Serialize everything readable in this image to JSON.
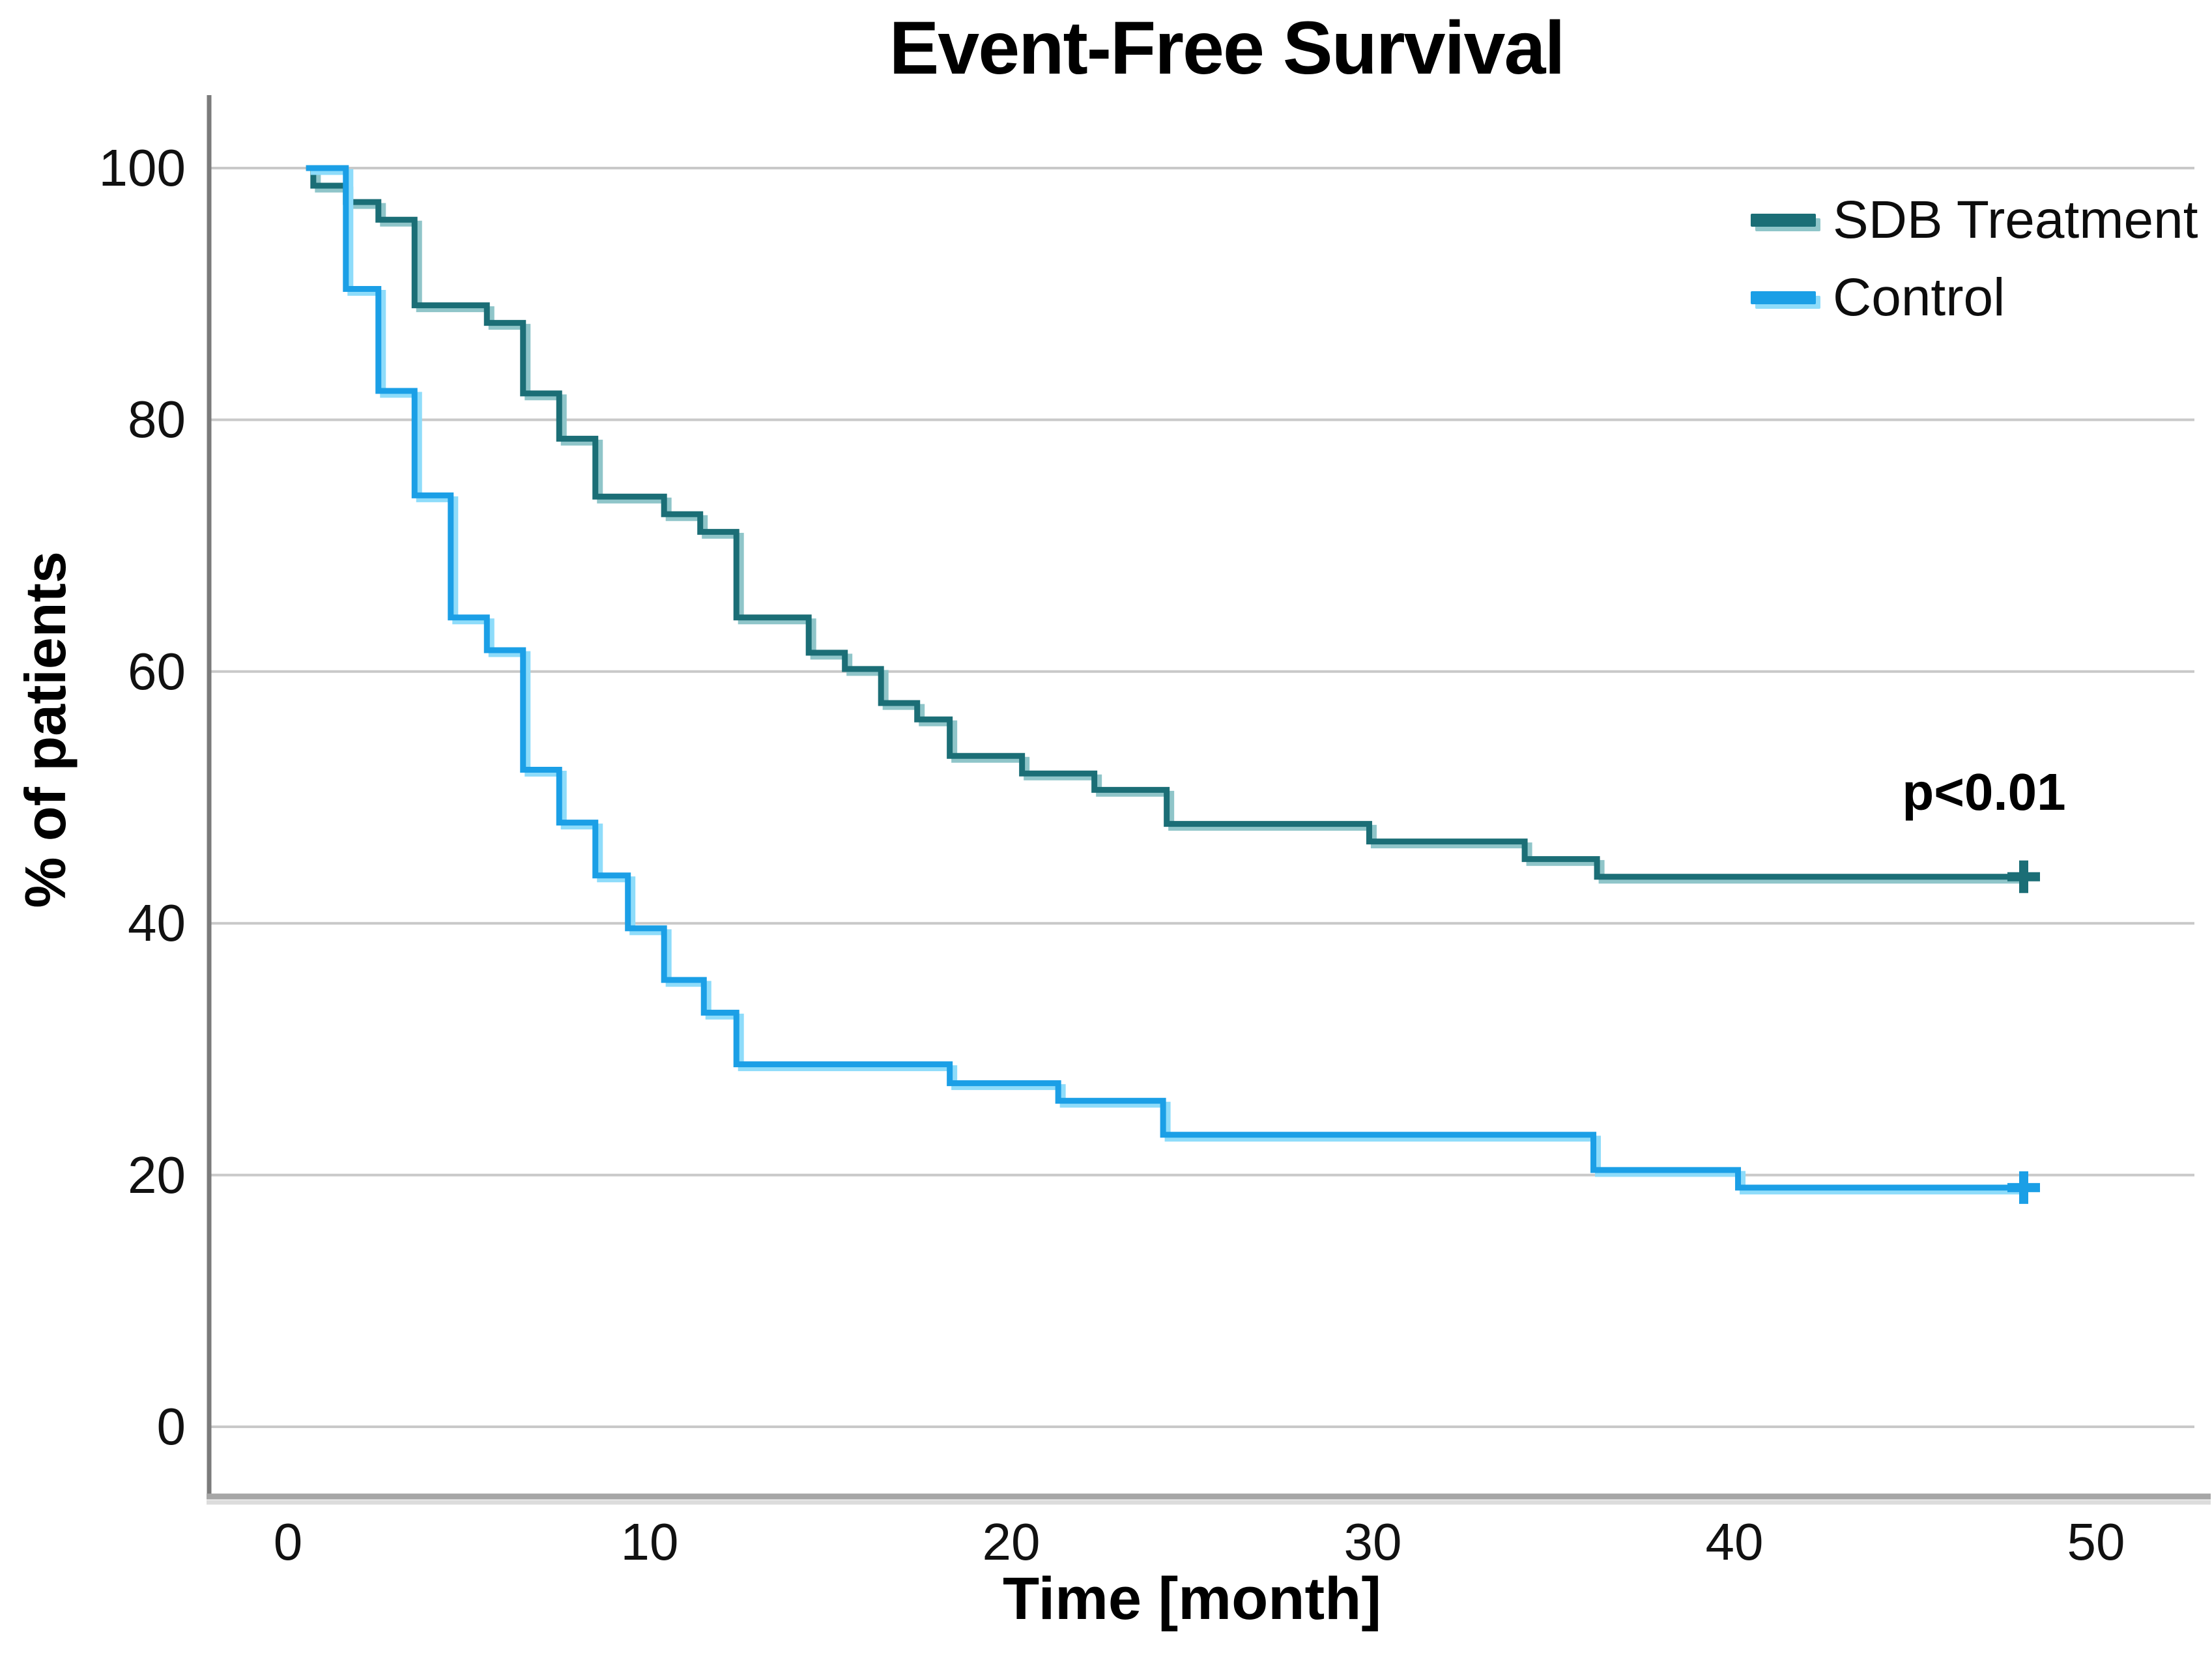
{
  "title": "Event-Free Survival",
  "p_value_annotation": "p<0.01",
  "x_axis": {
    "label": "Time [month]",
    "ticks": [
      0,
      10,
      20,
      30,
      40,
      50
    ]
  },
  "y_axis": {
    "label": "% of patients",
    "ticks": [
      0,
      20,
      40,
      60,
      80,
      100
    ]
  },
  "legend": {
    "position": "upper right",
    "items": [
      {
        "label": "SDB Treatment",
        "color": "#1b6e76",
        "shadow_color": "#8fc5c9"
      },
      {
        "label": "Control",
        "color": "#1b9fe6",
        "shadow_color": "#8edcfa"
      }
    ]
  },
  "colors": {
    "background": "#ffffff",
    "gridline": "#c9c9c9",
    "y_axis_line": "#7b7b7b",
    "x_axis_line": "#a6a6a6",
    "x_axis_line_shadow": "#dcdcdc",
    "text": "#000000"
  },
  "chart_data": {
    "type": "line",
    "subtype": "kaplan-meier-step-curves",
    "title": "Event-Free Survival",
    "xlabel": "Time [month]",
    "ylabel": "% of patients",
    "xlim": [
      0,
      50
    ],
    "ylim": [
      0,
      100
    ],
    "x_ticks": [
      0,
      10,
      20,
      30,
      40,
      50
    ],
    "y_ticks": [
      0,
      20,
      40,
      60,
      80,
      100
    ],
    "grid": "horizontal",
    "legend_position": "upper right",
    "annotations": [
      {
        "text": "p<0.01",
        "x": 46.8,
        "y": 50.3
      }
    ],
    "series": [
      {
        "name": "SDB Treatment",
        "color": "#1b6e76",
        "censored_at_end": true,
        "censor_time": 48,
        "steps_time_percent": [
          [
            0.5,
            100
          ],
          [
            0.7,
            98.6
          ],
          [
            1.6,
            97.3
          ],
          [
            2.5,
            95.9
          ],
          [
            3.5,
            89.1
          ],
          [
            5.5,
            87.7
          ],
          [
            6.5,
            82.1
          ],
          [
            7.5,
            78.5
          ],
          [
            8.5,
            73.9
          ],
          [
            10.4,
            72.5
          ],
          [
            11.4,
            71.1
          ],
          [
            12.4,
            64.3
          ],
          [
            14.4,
            61.5
          ],
          [
            15.4,
            60.2
          ],
          [
            16.4,
            57.5
          ],
          [
            17.4,
            56.2
          ],
          [
            18.3,
            53.3
          ],
          [
            20.3,
            51.9
          ],
          [
            22.3,
            50.6
          ],
          [
            24.3,
            47.9
          ],
          [
            29.9,
            46.5
          ],
          [
            34.2,
            45.1
          ],
          [
            36.2,
            43.7
          ],
          [
            48,
            43.7
          ]
        ]
      },
      {
        "name": "Control",
        "color": "#1b9fe6",
        "censored_at_end": true,
        "censor_time": 48,
        "steps_time_percent": [
          [
            0.5,
            100
          ],
          [
            1.6,
            90.4
          ],
          [
            2.5,
            82.3
          ],
          [
            3.5,
            74.0
          ],
          [
            4.5,
            64.3
          ],
          [
            5.5,
            61.7
          ],
          [
            6.5,
            52.2
          ],
          [
            7.5,
            48.0
          ],
          [
            8.5,
            43.8
          ],
          [
            9.4,
            39.6
          ],
          [
            10.4,
            35.5
          ],
          [
            11.5,
            32.9
          ],
          [
            12.4,
            28.8
          ],
          [
            18.3,
            27.3
          ],
          [
            21.3,
            25.9
          ],
          [
            24.2,
            23.2
          ],
          [
            36.1,
            20.4
          ],
          [
            40.1,
            19.0
          ],
          [
            48,
            19.0
          ]
        ]
      }
    ]
  }
}
